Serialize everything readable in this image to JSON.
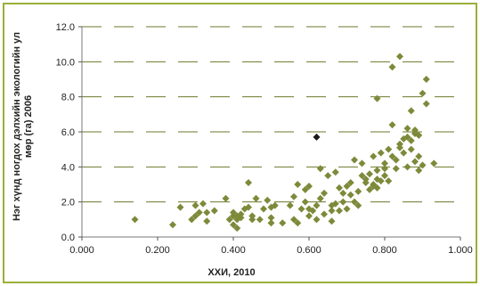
{
  "chart_data": {
    "type": "scatter",
    "title": "",
    "xlabel": "ХХИ, 2010",
    "ylabel_lines": [
      "Нэг хүнд ногдох дэлхийн экологийн ул",
      "мөр (га) 2006"
    ],
    "xlim": [
      0.0,
      1.0
    ],
    "ylim": [
      0.0,
      12.0
    ],
    "x_ticks": [
      "0.000",
      "0.200",
      "0.400",
      "0.600",
      "0.800",
      "1.000"
    ],
    "y_ticks": [
      "0.0",
      "2.0",
      "4.0",
      "6.0",
      "8.0",
      "10.0",
      "12.0"
    ],
    "grid": "horizontal dashed",
    "legend": "none",
    "series": [
      {
        "marker": "diamond",
        "color": "#7d8a3a",
        "points": [
          [
            0.14,
            1.0
          ],
          [
            0.24,
            0.7
          ],
          [
            0.26,
            1.7
          ],
          [
            0.29,
            1.0
          ],
          [
            0.3,
            1.8
          ],
          [
            0.3,
            1.2
          ],
          [
            0.31,
            1.4
          ],
          [
            0.32,
            1.9
          ],
          [
            0.33,
            1.4
          ],
          [
            0.33,
            0.9
          ],
          [
            0.35,
            1.5
          ],
          [
            0.38,
            2.2
          ],
          [
            0.39,
            1.0
          ],
          [
            0.4,
            1.2
          ],
          [
            0.4,
            1.4
          ],
          [
            0.4,
            0.7
          ],
          [
            0.41,
            0.5
          ],
          [
            0.41,
            1.0
          ],
          [
            0.41,
            1.2
          ],
          [
            0.42,
            1.1
          ],
          [
            0.42,
            1.3
          ],
          [
            0.43,
            1.6
          ],
          [
            0.44,
            1.7
          ],
          [
            0.44,
            3.1
          ],
          [
            0.45,
            1.0
          ],
          [
            0.45,
            1.2
          ],
          [
            0.46,
            2.2
          ],
          [
            0.47,
            1.0
          ],
          [
            0.48,
            1.6
          ],
          [
            0.49,
            2.1
          ],
          [
            0.5,
            1.1
          ],
          [
            0.5,
            0.8
          ],
          [
            0.5,
            1.7
          ],
          [
            0.51,
            1.8
          ],
          [
            0.53,
            0.8
          ],
          [
            0.55,
            1.8
          ],
          [
            0.56,
            1.0
          ],
          [
            0.56,
            2.3
          ],
          [
            0.57,
            0.8
          ],
          [
            0.57,
            3.0
          ],
          [
            0.58,
            1.6
          ],
          [
            0.59,
            2.0
          ],
          [
            0.59,
            2.7
          ],
          [
            0.6,
            1.6
          ],
          [
            0.6,
            1.2
          ],
          [
            0.6,
            2.9
          ],
          [
            0.61,
            1.5
          ],
          [
            0.62,
            1.0
          ],
          [
            0.62,
            1.8
          ],
          [
            0.63,
            2.2
          ],
          [
            0.63,
            3.9
          ],
          [
            0.64,
            1.3
          ],
          [
            0.64,
            2.5
          ],
          [
            0.65,
            3.5
          ],
          [
            0.66,
            1.8
          ],
          [
            0.66,
            1.5
          ],
          [
            0.66,
            0.9
          ],
          [
            0.67,
            1.9
          ],
          [
            0.67,
            3.7
          ],
          [
            0.68,
            2.8
          ],
          [
            0.68,
            1.5
          ],
          [
            0.69,
            2.0
          ],
          [
            0.69,
            2.5
          ],
          [
            0.7,
            1.6
          ],
          [
            0.7,
            2.9
          ],
          [
            0.71,
            2.4
          ],
          [
            0.71,
            3.1
          ],
          [
            0.72,
            2.0
          ],
          [
            0.72,
            4.4
          ],
          [
            0.73,
            1.8
          ],
          [
            0.73,
            2.6
          ],
          [
            0.74,
            3.5
          ],
          [
            0.74,
            4.2
          ],
          [
            0.75,
            3.3
          ],
          [
            0.75,
            3.1
          ],
          [
            0.76,
            3.6
          ],
          [
            0.76,
            2.7
          ],
          [
            0.77,
            3.0
          ],
          [
            0.77,
            2.9
          ],
          [
            0.77,
            4.6
          ],
          [
            0.78,
            3.3
          ],
          [
            0.78,
            3.8
          ],
          [
            0.78,
            2.8
          ],
          [
            0.79,
            3.2
          ],
          [
            0.79,
            4.8
          ],
          [
            0.8,
            3.5
          ],
          [
            0.8,
            4.2
          ],
          [
            0.8,
            3.9
          ],
          [
            0.81,
            3.2
          ],
          [
            0.81,
            5.0
          ],
          [
            0.82,
            4.6
          ],
          [
            0.82,
            6.4
          ],
          [
            0.83,
            3.9
          ],
          [
            0.83,
            4.4
          ],
          [
            0.84,
            5.1
          ],
          [
            0.84,
            10.3
          ],
          [
            0.82,
            9.7
          ],
          [
            0.85,
            5.6
          ],
          [
            0.85,
            4.8
          ],
          [
            0.86,
            6.2
          ],
          [
            0.86,
            4.0
          ],
          [
            0.87,
            5.5
          ],
          [
            0.87,
            7.2
          ],
          [
            0.87,
            5.0
          ],
          [
            0.88,
            5.9
          ],
          [
            0.88,
            6.1
          ],
          [
            0.88,
            4.3
          ],
          [
            0.89,
            4.6
          ],
          [
            0.89,
            3.8
          ],
          [
            0.89,
            5.8
          ],
          [
            0.9,
            8.2
          ],
          [
            0.9,
            4.1
          ],
          [
            0.91,
            9.0
          ],
          [
            0.91,
            7.6
          ],
          [
            0.93,
            4.2
          ],
          [
            0.78,
            7.9
          ],
          [
            0.84,
            5.3
          ],
          [
            0.86,
            5.7
          ]
        ]
      },
      {
        "marker": "diamond",
        "color": "#1a1a1a",
        "points": [
          [
            0.62,
            5.7
          ]
        ]
      }
    ]
  }
}
